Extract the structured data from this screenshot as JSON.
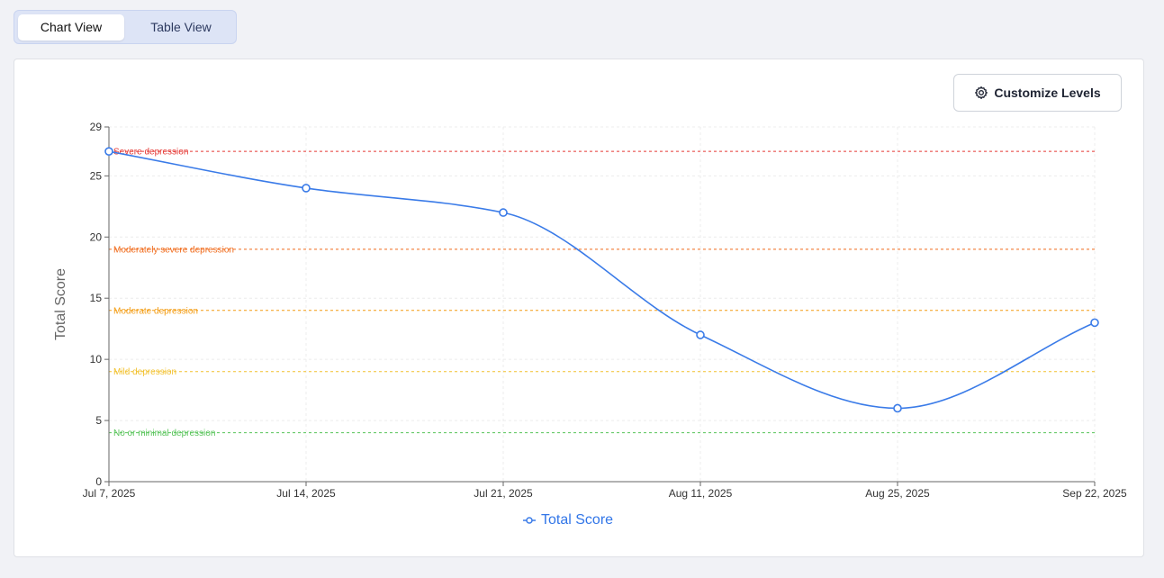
{
  "view_tabs": {
    "chart_label": "Chart View",
    "table_label": "Table View",
    "active": "chart"
  },
  "toolbar": {
    "customize_label": "Customize Levels",
    "customize_icon": "gear-icon"
  },
  "colors": {
    "series": "#3a7be8",
    "severe": "#e53935",
    "moderately_severe": "#f06a1a",
    "moderate": "#f39c12",
    "mild": "#f2c12e",
    "minimal": "#58c45a"
  },
  "chart_data": {
    "type": "line",
    "ylabel": "Total Score",
    "xlabel": "",
    "ylim": [
      0,
      29
    ],
    "yticks": [
      "0",
      "5",
      "10",
      "15",
      "20",
      "25",
      "29"
    ],
    "ytick_values": [
      0,
      5,
      10,
      15,
      20,
      25,
      29
    ],
    "x": [
      "Jul 7, 2025",
      "Jul 14, 2025",
      "Jul 21, 2025",
      "Aug 11, 2025",
      "Aug 25, 2025",
      "Sep 22, 2025"
    ],
    "series": [
      {
        "name": "Total Score",
        "values": [
          27,
          24,
          22,
          12,
          6,
          13
        ]
      }
    ],
    "grid": true,
    "legend": "bottom-center",
    "reference_lines": [
      {
        "label": "Severe depression",
        "value": 27,
        "color": "#e53935"
      },
      {
        "label": "Moderately severe depression",
        "value": 19,
        "color": "#f06a1a"
      },
      {
        "label": "Moderate depression",
        "value": 14,
        "color": "#f39c12"
      },
      {
        "label": "Mild depression",
        "value": 9,
        "color": "#f2c12e"
      },
      {
        "label": "No or minimal depression",
        "value": 4,
        "color": "#58c45a"
      }
    ]
  }
}
